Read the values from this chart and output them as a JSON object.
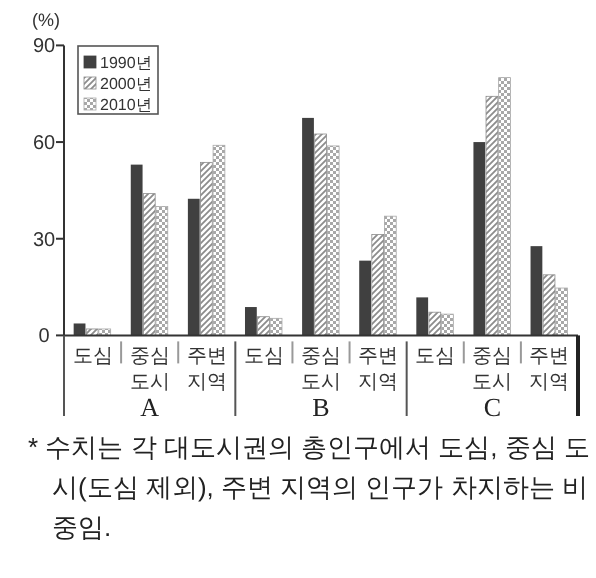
{
  "chart_data": {
    "type": "bar",
    "ylabel": "(%)",
    "categories": [
      "도심",
      "중심 도시",
      "주변 지역",
      "도심",
      "중심 도시",
      "주변 지역",
      "도심",
      "중심 도시",
      "주변 지역"
    ],
    "series": [
      {
        "name": "1990년",
        "color": "#404040",
        "values": [
          3.7,
          53,
          42.4,
          8.8,
          67.5,
          23.2,
          11.8,
          60,
          27.7
        ]
      },
      {
        "name": "2000년",
        "color": "#8c8c8c",
        "values": [
          2,
          44,
          53.7,
          5.8,
          62.5,
          31.3,
          7.2,
          74.2,
          18.8
        ]
      },
      {
        "name": "2010년",
        "color": "#a8a8a8",
        "values": [
          2,
          40,
          59,
          5.3,
          58.8,
          37,
          6.6,
          80,
          14.7
        ]
      }
    ],
    "ylim": [
      0,
      90
    ],
    "yticks": [
      0,
      30,
      60,
      90
    ],
    "grid": false,
    "legend": "top left",
    "annotations": [
      "A",
      "B",
      "C",
      "* 수치는 각 대도시권의 총인구에서 도심, 중심 도시(도심 제외), 주변 지역의 인구가 차지하는 비중임."
    ]
  }
}
